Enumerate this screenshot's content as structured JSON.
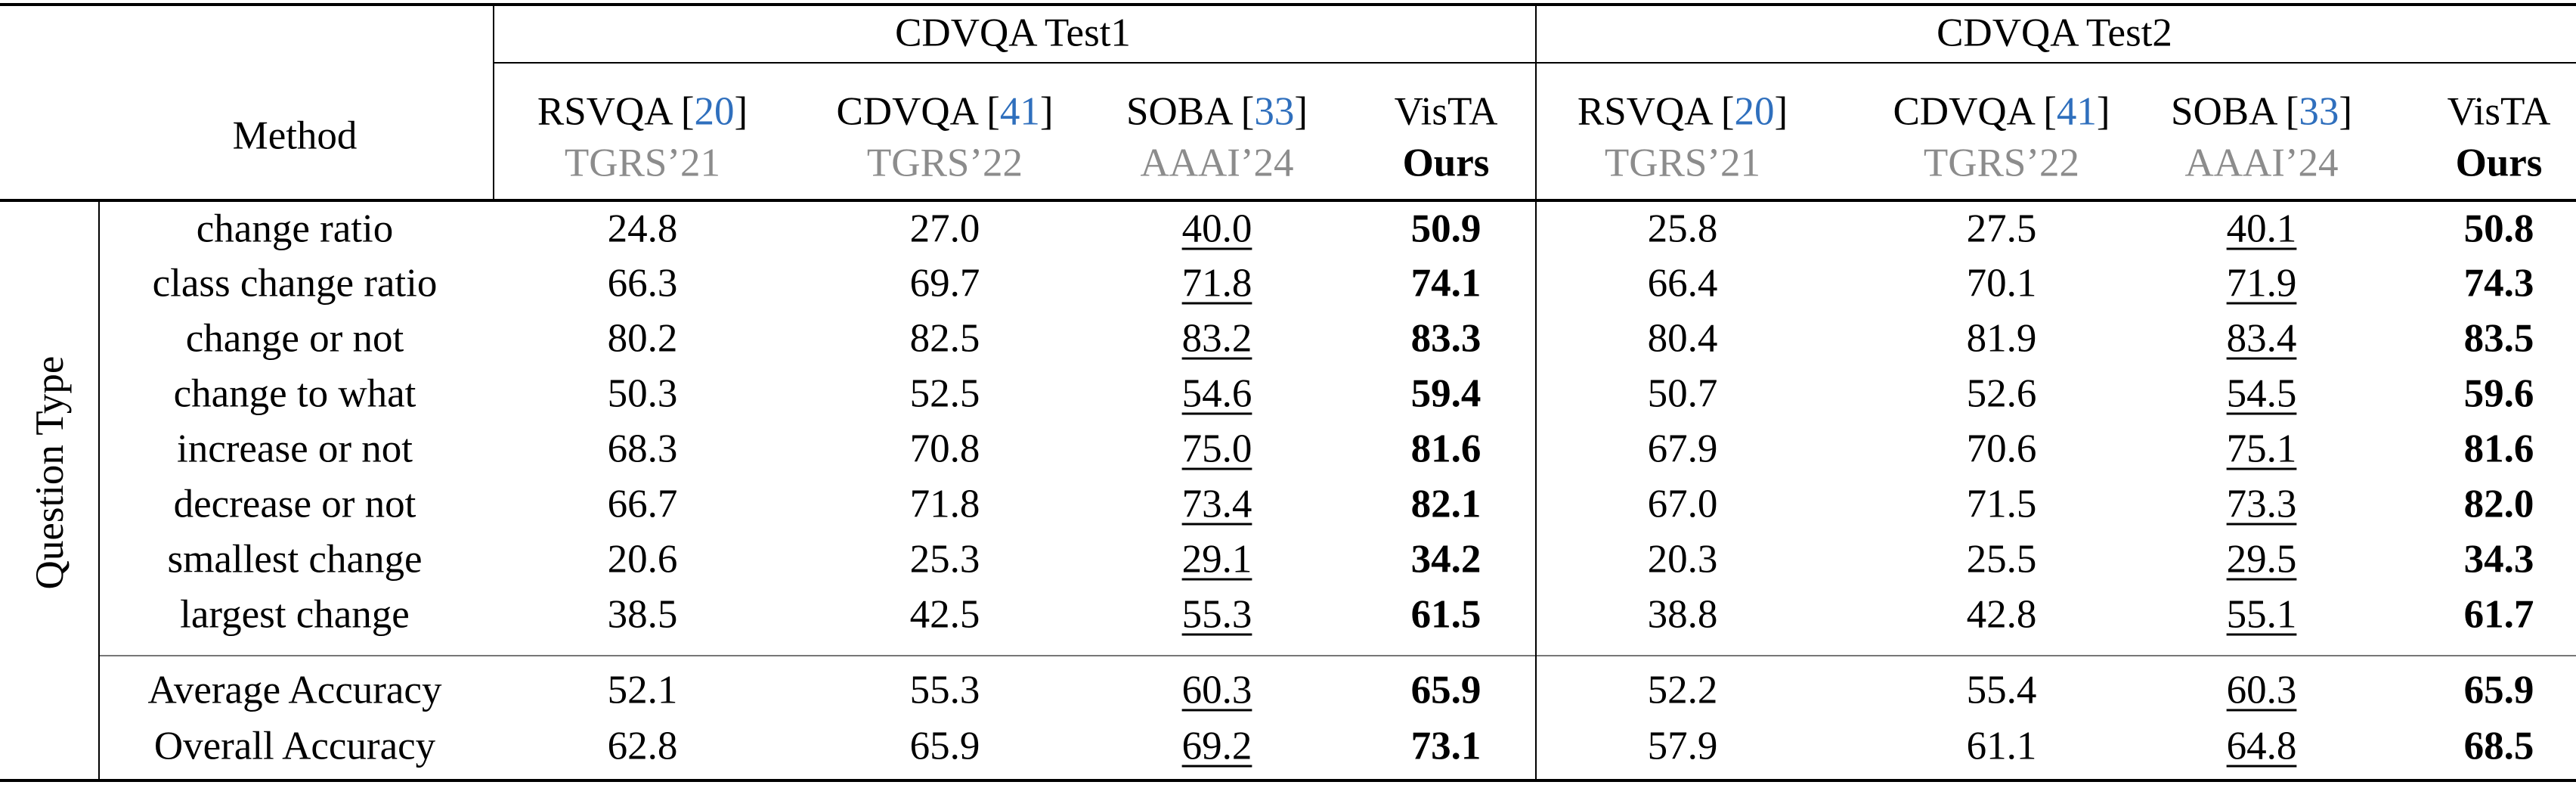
{
  "table": {
    "method_header": "Method",
    "question_type_label": "Question Type",
    "groups": [
      "CDVQA Test1",
      "CDVQA Test2"
    ],
    "columns": [
      {
        "name": "RSVQA [",
        "cite": "20",
        "close": "]",
        "venue": "TGRS’21"
      },
      {
        "name": "CDVQA [",
        "cite": "41",
        "close": "]",
        "venue": "TGRS’22"
      },
      {
        "name": "SOBA [",
        "cite": "33",
        "close": "]",
        "venue": "AAAI’24"
      },
      {
        "name": "VisTA",
        "cite": "",
        "close": "",
        "venue": "Ours"
      }
    ],
    "rows": [
      {
        "label": "change ratio",
        "values": [
          "24.8",
          "27.0",
          "40.0",
          "50.9",
          "25.8",
          "27.5",
          "40.1",
          "50.8"
        ]
      },
      {
        "label": "class change ratio",
        "values": [
          "66.3",
          "69.7",
          "71.8",
          "74.1",
          "66.4",
          "70.1",
          "71.9",
          "74.3"
        ]
      },
      {
        "label": "change or not",
        "values": [
          "80.2",
          "82.5",
          "83.2",
          "83.3",
          "80.4",
          "81.9",
          "83.4",
          "83.5"
        ]
      },
      {
        "label": "change to what",
        "values": [
          "50.3",
          "52.5",
          "54.6",
          "59.4",
          "50.7",
          "52.6",
          "54.5",
          "59.6"
        ]
      },
      {
        "label": "increase or not",
        "values": [
          "68.3",
          "70.8",
          "75.0",
          "81.6",
          "67.9",
          "70.6",
          "75.1",
          "81.6"
        ]
      },
      {
        "label": "decrease or not",
        "values": [
          "66.7",
          "71.8",
          "73.4",
          "82.1",
          "67.0",
          "71.5",
          "73.3",
          "82.0"
        ]
      },
      {
        "label": "smallest change",
        "values": [
          "20.6",
          "25.3",
          "29.1",
          "34.2",
          "20.3",
          "25.5",
          "29.5",
          "34.3"
        ]
      },
      {
        "label": "largest change",
        "values": [
          "38.5",
          "42.5",
          "55.3",
          "61.5",
          "38.8",
          "42.8",
          "55.1",
          "61.7"
        ]
      }
    ],
    "summary_rows": [
      {
        "label": "Average Accuracy",
        "values": [
          "52.1",
          "55.3",
          "60.3",
          "65.9",
          "52.2",
          "55.4",
          "60.3",
          "65.9"
        ]
      },
      {
        "label": "Overall Accuracy",
        "values": [
          "62.8",
          "65.9",
          "69.2",
          "73.1",
          "57.9",
          "61.1",
          "64.8",
          "68.5"
        ]
      }
    ]
  }
}
